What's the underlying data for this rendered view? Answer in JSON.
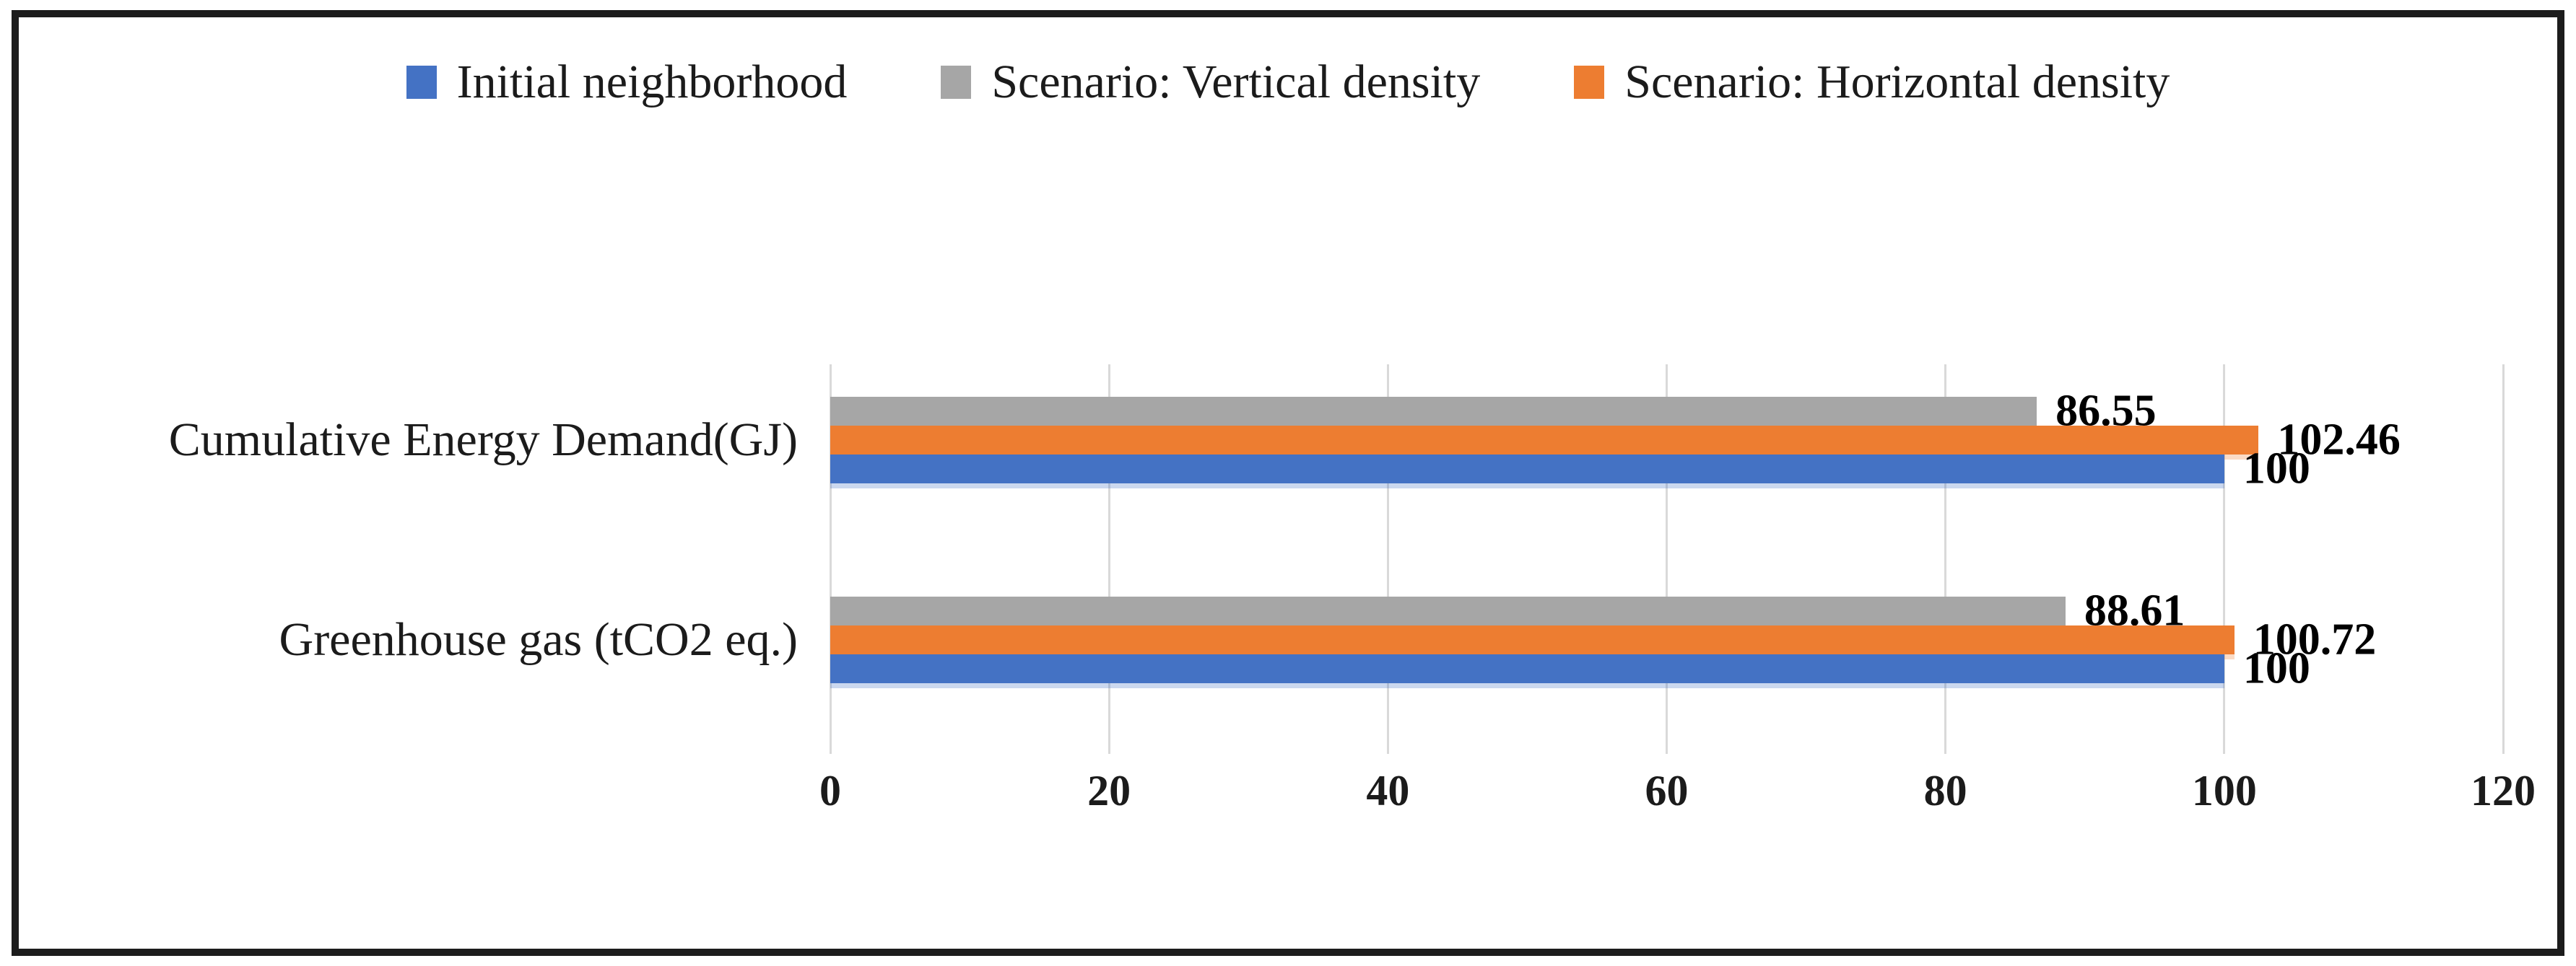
{
  "frame": {
    "border_color": "#1c1c1c",
    "background": "#ffffff"
  },
  "chart_data": {
    "type": "bar",
    "orientation": "horizontal",
    "title": "",
    "xlabel": "",
    "ylabel": "",
    "categories": [
      "Cumulative Energy Demand(GJ)",
      "Greenhouse gas (tCO2 eq.)"
    ],
    "series": [
      {
        "name": "Initial neighborhood",
        "color": "#4472C4",
        "values": [
          100,
          100
        ],
        "labels": [
          "100",
          "100"
        ]
      },
      {
        "name": "Scenario: Vertical density",
        "color": "#A6A6A6",
        "values": [
          86.55,
          88.61
        ],
        "labels": [
          "86.55",
          "88.61"
        ]
      },
      {
        "name": "Scenario: Horizontal density",
        "color": "#ED7D31",
        "values": [
          102.46,
          100.72
        ],
        "labels": [
          "102.46",
          "100.72"
        ]
      }
    ],
    "bar_order_top_to_bottom": [
      "Scenario: Vertical density",
      "Scenario: Horizontal density",
      "Initial neighborhood"
    ],
    "xlim": [
      0,
      120
    ],
    "xticks": [
      "0",
      "20",
      "40",
      "60",
      "80",
      "100",
      "120"
    ],
    "grid": true,
    "gridline_color": "#d9d9d9",
    "legend_position": "top",
    "text_color": "#1b1b1b",
    "data_label_color": "#000000"
  }
}
